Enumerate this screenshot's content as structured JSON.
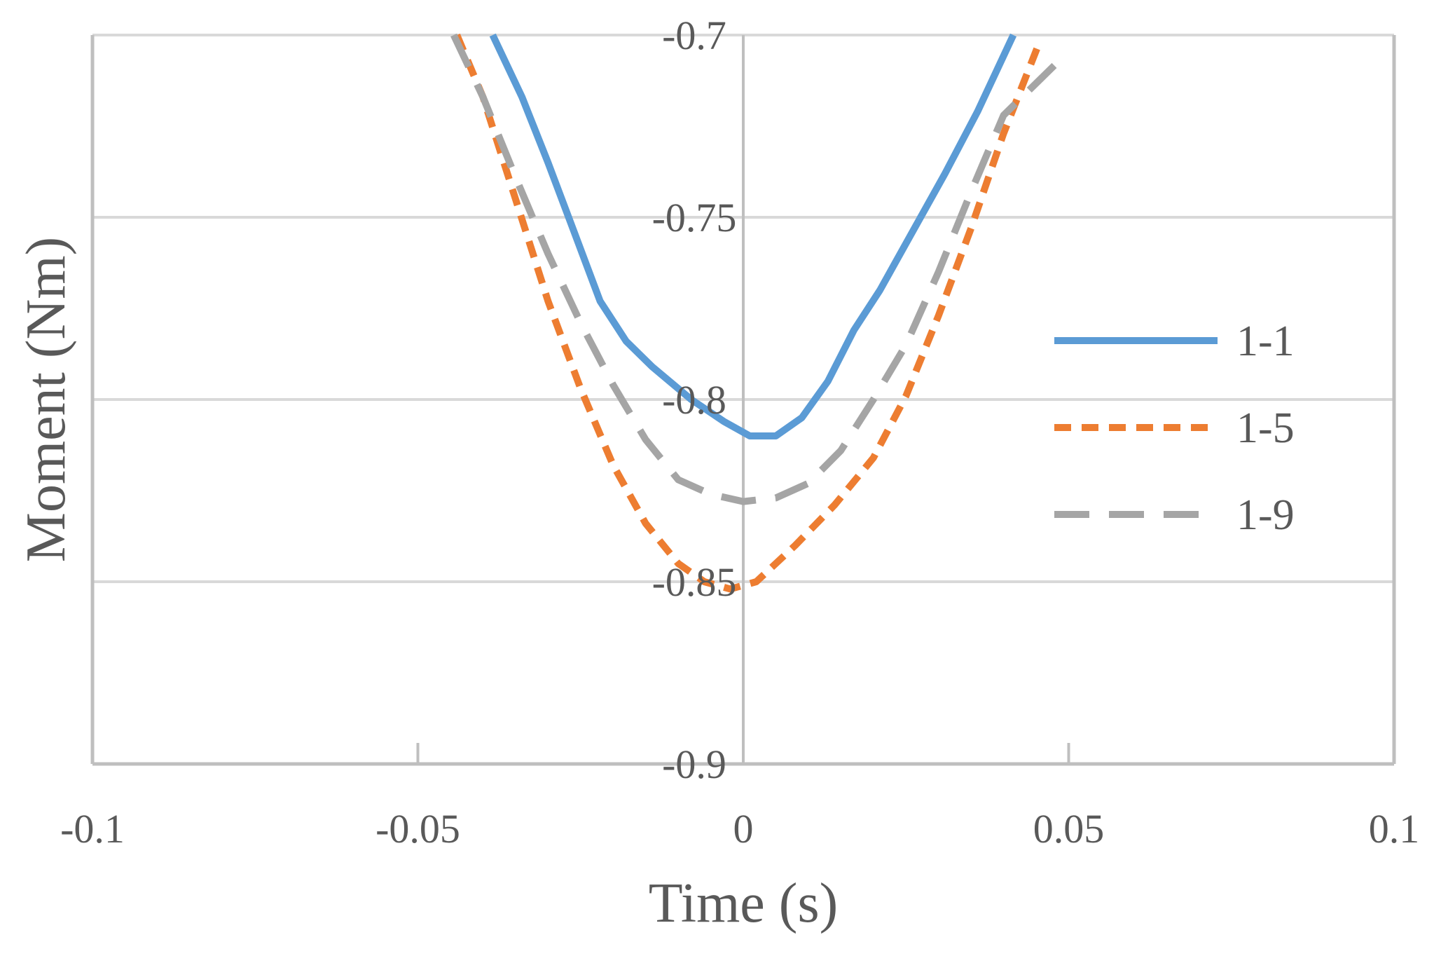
{
  "chart_data": {
    "type": "line",
    "xlabel": "Time (s)",
    "ylabel": "Moment (Nm)",
    "xlim": [
      -0.1,
      0.1
    ],
    "ylim": [
      -0.9,
      -0.7
    ],
    "x_ticks": [
      -0.1,
      -0.05,
      0,
      0.05,
      0.1
    ],
    "y_ticks": [
      -0.7,
      -0.75,
      -0.8,
      -0.85,
      -0.9
    ],
    "x_tick_labels": [
      "-0.1",
      "-0.05",
      "0",
      "0.05",
      "0.1"
    ],
    "y_tick_labels": [
      "-0.7",
      "-0.75",
      "-0.8",
      "-0.85",
      "-0.9"
    ],
    "grid": true,
    "legend_position": "right",
    "series": [
      {
        "name": "1-1",
        "color": "#5B9BD5",
        "dash": "solid",
        "points": [
          [
            -0.0385,
            -0.7
          ],
          [
            -0.034,
            -0.717
          ],
          [
            -0.03,
            -0.735
          ],
          [
            -0.026,
            -0.754
          ],
          [
            -0.022,
            -0.773
          ],
          [
            -0.018,
            -0.784
          ],
          [
            -0.014,
            -0.791
          ],
          [
            -0.008,
            -0.8
          ],
          [
            -0.003,
            -0.806
          ],
          [
            0.001,
            -0.81
          ],
          [
            0.005,
            -0.81
          ],
          [
            0.009,
            -0.805
          ],
          [
            0.013,
            -0.795
          ],
          [
            0.017,
            -0.781
          ],
          [
            0.021,
            -0.77
          ],
          [
            0.026,
            -0.754
          ],
          [
            0.031,
            -0.738
          ],
          [
            0.036,
            -0.721
          ],
          [
            0.0415,
            -0.7
          ]
        ]
      },
      {
        "name": "1-5",
        "color": "#ED7D31",
        "dash": "short-dash",
        "points": [
          [
            -0.044,
            -0.7
          ],
          [
            -0.04,
            -0.717
          ],
          [
            -0.035,
            -0.745
          ],
          [
            -0.03,
            -0.773
          ],
          [
            -0.025,
            -0.797
          ],
          [
            -0.02,
            -0.818
          ],
          [
            -0.015,
            -0.834
          ],
          [
            -0.01,
            -0.845
          ],
          [
            -0.006,
            -0.85
          ],
          [
            -0.002,
            -0.852
          ],
          [
            0.002,
            -0.85
          ],
          [
            0.008,
            -0.84
          ],
          [
            0.014,
            -0.829
          ],
          [
            0.02,
            -0.816
          ],
          [
            0.025,
            -0.799
          ],
          [
            0.03,
            -0.777
          ],
          [
            0.035,
            -0.753
          ],
          [
            0.04,
            -0.727
          ],
          [
            0.0455,
            -0.702
          ]
        ]
      },
      {
        "name": "1-9",
        "color": "#A5A5A5",
        "dash": "long-dash",
        "points": [
          [
            -0.0445,
            -0.7
          ],
          [
            -0.04,
            -0.717
          ],
          [
            -0.035,
            -0.739
          ],
          [
            -0.03,
            -0.76
          ],
          [
            -0.025,
            -0.779
          ],
          [
            -0.02,
            -0.796
          ],
          [
            -0.015,
            -0.811
          ],
          [
            -0.01,
            -0.822
          ],
          [
            -0.005,
            -0.826
          ],
          [
            0.0,
            -0.828
          ],
          [
            0.005,
            -0.827
          ],
          [
            0.01,
            -0.823
          ],
          [
            0.015,
            -0.814
          ],
          [
            0.02,
            -0.8
          ],
          [
            0.025,
            -0.785
          ],
          [
            0.03,
            -0.765
          ],
          [
            0.035,
            -0.743
          ],
          [
            0.04,
            -0.722
          ],
          [
            0.048,
            -0.708
          ]
        ]
      }
    ]
  }
}
